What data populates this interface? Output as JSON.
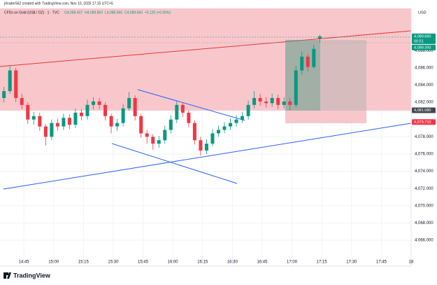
{
  "header": {
    "credit": "jrtrader562 created with TradingView.com, Nov 10, 2025 17:15 UTC+5",
    "symbol": "CFDs on Gold (US$ / OZ) · 1 · TVC",
    "ohlc": [
      "O4,089.407",
      "H4,089.850",
      "L4,088.960",
      "C4,089.660",
      "+0.120 (+0.00%)"
    ],
    "currency": "USD",
    "logo": "TradingView"
  },
  "chart_data": {
    "type": "candlestick",
    "x": [
      "14:35",
      "14:38",
      "14:41",
      "14:44",
      "14:47",
      "14:50",
      "14:53",
      "14:56",
      "14:59",
      "15:02",
      "15:05",
      "15:08",
      "15:11",
      "15:14",
      "15:17",
      "15:20",
      "15:23",
      "15:26",
      "15:29",
      "15:32",
      "15:35",
      "15:38",
      "15:41",
      "15:44",
      "15:47",
      "15:50",
      "15:53",
      "15:56",
      "15:59",
      "16:02",
      "16:05",
      "16:08",
      "16:11",
      "16:14",
      "16:17",
      "16:20",
      "16:23",
      "16:26",
      "16:29",
      "16:32",
      "16:35",
      "16:38",
      "16:41",
      "16:44",
      "16:47",
      "16:50",
      "16:53",
      "16:56",
      "16:59",
      "17:02",
      "17:05",
      "17:08",
      "17:11",
      "17:14"
    ],
    "open": [
      4082.5,
      4083.3,
      4085.7,
      4082.5,
      4081.7,
      4080.0,
      4080.4,
      4079.2,
      4078.0,
      4079.6,
      4079.2,
      4080.2,
      4079.4,
      4080.8,
      4080.4,
      4081.7,
      4082.1,
      4081.7,
      4080.4,
      4079.2,
      4079.6,
      4081.3,
      4082.5,
      4080.4,
      4078.4,
      4078.0,
      4077.2,
      4077.6,
      4078.8,
      4080.0,
      4081.7,
      4080.8,
      4079.6,
      4077.6,
      4076.4,
      4077.2,
      4078.4,
      4078.8,
      4079.2,
      4079.6,
      4080.0,
      4080.4,
      4081.7,
      4082.5,
      4082.1,
      4081.9,
      4082.5,
      4081.7,
      4082.1,
      4081.7,
      4085.7,
      4087.3,
      4086.1,
      4089.407
    ],
    "high": [
      4083.8,
      4086.2,
      4086.0,
      4083.0,
      4082.0,
      4080.9,
      4080.8,
      4079.5,
      4080.0,
      4080.1,
      4080.7,
      4080.6,
      4081.3,
      4081.2,
      4082.3,
      4082.6,
      4082.5,
      4082.0,
      4080.7,
      4080.1,
      4081.8,
      4083.2,
      4082.8,
      4080.7,
      4078.8,
      4078.3,
      4078.1,
      4079.3,
      4080.5,
      4082.2,
      4082.0,
      4081.1,
      4079.9,
      4078.0,
      4077.7,
      4078.9,
      4079.3,
      4079.7,
      4080.1,
      4080.5,
      4080.9,
      4082.2,
      4083.3,
      4083.0,
      4082.6,
      4083.0,
      4082.9,
      4082.6,
      4082.5,
      4086.2,
      4087.9,
      4087.6,
      4088.7,
      4089.85
    ],
    "low": [
      4082.0,
      4083.0,
      4082.0,
      4081.2,
      4079.5,
      4079.4,
      4078.7,
      4077.0,
      4077.6,
      4078.7,
      4078.8,
      4078.9,
      4079.0,
      4079.9,
      4080.0,
      4081.2,
      4081.2,
      4079.9,
      4078.4,
      4078.7,
      4079.2,
      4081.0,
      4079.9,
      4077.9,
      4077.2,
      4076.5,
      4076.7,
      4077.2,
      4078.4,
      4079.6,
      4080.3,
      4079.1,
      4077.1,
      4075.8,
      4076.0,
      4076.9,
      4078.0,
      4078.4,
      4078.8,
      4079.2,
      4079.6,
      4080.0,
      4081.3,
      4081.6,
      4081.4,
      4081.5,
      4081.2,
      4081.3,
      4081.1,
      4081.4,
      4085.2,
      4085.6,
      4085.9,
      4088.96
    ],
    "close": [
      4083.3,
      4085.7,
      4082.5,
      4081.7,
      4080.0,
      4080.4,
      4079.2,
      4078.0,
      4079.6,
      4079.2,
      4080.2,
      4079.4,
      4080.8,
      4080.4,
      4081.7,
      4082.1,
      4081.7,
      4080.4,
      4079.2,
      4079.6,
      4081.3,
      4082.5,
      4080.4,
      4078.4,
      4078.0,
      4077.2,
      4077.6,
      4078.8,
      4080.0,
      4081.7,
      4080.8,
      4079.6,
      4077.6,
      4076.4,
      4077.2,
      4078.4,
      4078.8,
      4079.2,
      4079.6,
      4080.0,
      4080.4,
      4081.7,
      4082.5,
      4082.1,
      4081.9,
      4082.5,
      4081.7,
      4082.1,
      4081.7,
      4085.7,
      4087.3,
      4086.1,
      4088.2,
      4089.66
    ],
    "up_color": "#089981",
    "down_color": "#f23645",
    "xlim": [
      "14:33",
      "18:00"
    ],
    "xticks": [
      {
        "value": "14:45",
        "label": "14:45"
      },
      {
        "value": "15:00",
        "label": "15:00"
      },
      {
        "value": "15:15",
        "label": "15:15"
      },
      {
        "value": "15:30",
        "label": "15:30"
      },
      {
        "value": "15:45",
        "label": "15:45"
      },
      {
        "value": "16:00",
        "label": "16:00"
      },
      {
        "value": "16:15",
        "label": "16:15"
      },
      {
        "value": "16:30",
        "label": "16:30"
      },
      {
        "value": "16:45",
        "label": "16:45"
      },
      {
        "value": "17:00",
        "label": "17:00"
      },
      {
        "value": "17:15",
        "label": "17:15"
      },
      {
        "value": "17:30",
        "label": "17:30"
      },
      {
        "value": "17:45",
        "label": "17:45"
      },
      {
        "value": "18:00",
        "label": "18"
      }
    ],
    "ylim": [
      4063.4,
      4092.9
    ],
    "yticks": [
      {
        "value": 4066,
        "label": "4,066.000"
      },
      {
        "value": 4068,
        "label": "4,068.000"
      },
      {
        "value": 4070,
        "label": "4,070.000"
      },
      {
        "value": 4072,
        "label": "4,072.000"
      },
      {
        "value": 4074,
        "label": "4,074.000"
      },
      {
        "value": 4076,
        "label": "4,076.000"
      },
      {
        "value": 4078,
        "label": "4,078.000"
      },
      {
        "value": 4082,
        "label": "4,082.000"
      },
      {
        "value": 4084,
        "label": "4,084.000"
      },
      {
        "value": 4086,
        "label": "4,086.000"
      },
      {
        "value": 4088,
        "label": "4,088.000"
      }
    ],
    "grid": true,
    "price_labels": [
      {
        "value": 4089.66,
        "label": "4,089.660",
        "sub": "00:51",
        "color": "#089981"
      },
      {
        "value": 4089.393,
        "label": "4,089.393",
        "color": "#089981"
      },
      {
        "value": 4081.08,
        "label": "4,081.080",
        "color": "#434651"
      },
      {
        "value": 4079.71,
        "label": "4,079.710",
        "color": "#f23645"
      }
    ]
  }
}
